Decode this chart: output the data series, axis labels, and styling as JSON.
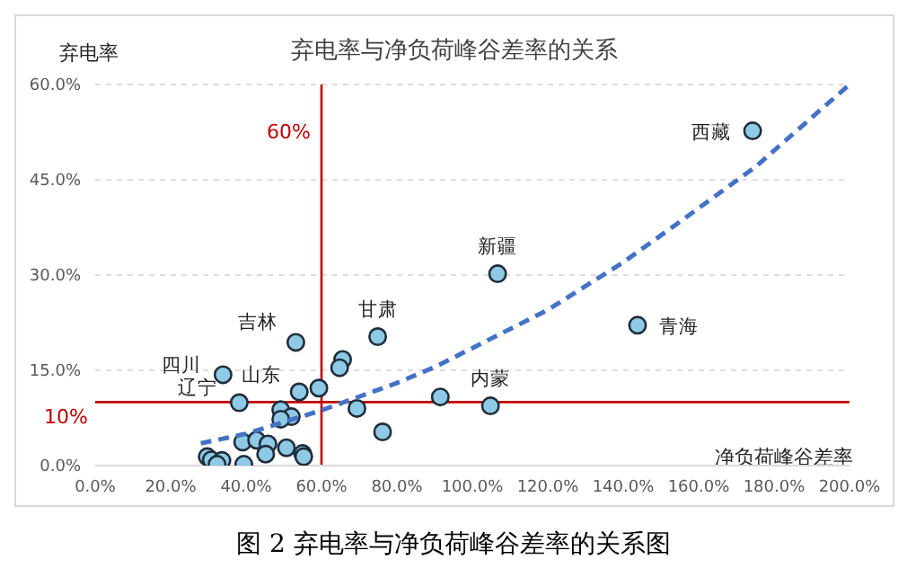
{
  "chart_data": {
    "type": "scatter",
    "title": "弃电率与净负荷峰谷差率的关系",
    "xlabel": "净负荷峰谷差率",
    "ylabel": "弃电率",
    "xlim": [
      0,
      200
    ],
    "xticks": [
      {
        "value": 0,
        "label": "0.0%"
      },
      {
        "value": 20,
        "label": "20.0%"
      },
      {
        "value": 40,
        "label": "40.0%"
      },
      {
        "value": 60,
        "label": "60.0%"
      },
      {
        "value": 80,
        "label": "80.0%"
      },
      {
        "value": 100,
        "label": "100.0%"
      },
      {
        "value": 120,
        "label": "120.0%"
      },
      {
        "value": 140,
        "label": "140.0%"
      },
      {
        "value": 160,
        "label": "160.0%"
      },
      {
        "value": 180,
        "label": "180.0%"
      },
      {
        "value": 200,
        "label": "200.0%"
      }
    ],
    "ylim": [
      0,
      60
    ],
    "yticks": [
      {
        "value": 0,
        "label": "0.0%"
      },
      {
        "value": 15,
        "label": "15.0%"
      },
      {
        "value": 30,
        "label": "30.0%"
      },
      {
        "value": 45,
        "label": "45.0%"
      },
      {
        "value": 60,
        "label": "60.0%"
      }
    ],
    "grid": "y",
    "marker": "circle",
    "series": [
      {
        "type": "scatter",
        "color": "#8ecae6",
        "x": [
          174.3,
          106.7,
          143.8,
          104.8,
          91.5,
          74.9,
          53.2,
          65.6,
          64.8,
          59.3,
          54.1,
          33.9,
          38.2,
          49.2,
          52,
          49.2,
          69.4,
          76.2,
          39.1,
          42.8,
          45.8,
          50.7,
          45.2,
          55,
          55.3,
          39.4,
          29.7,
          30.8,
          33.6,
          32.3
        ],
        "values": [
          52.7,
          30.2,
          22.1,
          9.4,
          10.8,
          20.3,
          19.4,
          16.7,
          15.4,
          12.2,
          11.6,
          14.3,
          9.9,
          8.8,
          7.7,
          7.3,
          9.0,
          5.3,
          3.7,
          4.0,
          3.4,
          2.8,
          1.8,
          1.9,
          1.4,
          0.2,
          1.4,
          0.9,
          0.8,
          0.2
        ]
      },
      {
        "type": "line",
        "color": "#4472c4",
        "line_style": "dashed",
        "marker": "none",
        "x": [
          28,
          40,
          60,
          80,
          90,
          120,
          140,
          156,
          175,
          200
        ],
        "values": [
          3.5,
          5,
          8.7,
          13,
          15.5,
          24.5,
          32,
          38.8,
          47,
          60
        ]
      }
    ],
    "ref_lines": [
      {
        "axis": "x",
        "value": 60,
        "label": "60%",
        "color": "#c00000"
      },
      {
        "axis": "y",
        "value": 10,
        "label": "10%",
        "color": "#c00000"
      }
    ],
    "annotations": [
      {
        "text": "西藏",
        "x": 174.3,
        "y": 52.7
      },
      {
        "text": "新疆",
        "x": 106.7,
        "y": 30.2
      },
      {
        "text": "青海",
        "x": 143.8,
        "y": 22.1
      },
      {
        "text": "内蒙",
        "x": 104.8,
        "y": 9.4
      },
      {
        "text": "甘肃",
        "x": 74.9,
        "y": 20.3
      },
      {
        "text": "吉林",
        "x": 53.2,
        "y": 19.4
      },
      {
        "text": "四川",
        "x": 33.9,
        "y": 14.3
      },
      {
        "text": "山东",
        "x": 54.1,
        "y": 11.6
      },
      {
        "text": "辽宁",
        "x": 38.2,
        "y": 9.9
      },
      "图 2 弃电率与净负荷峰谷差率的关系图"
    ]
  }
}
